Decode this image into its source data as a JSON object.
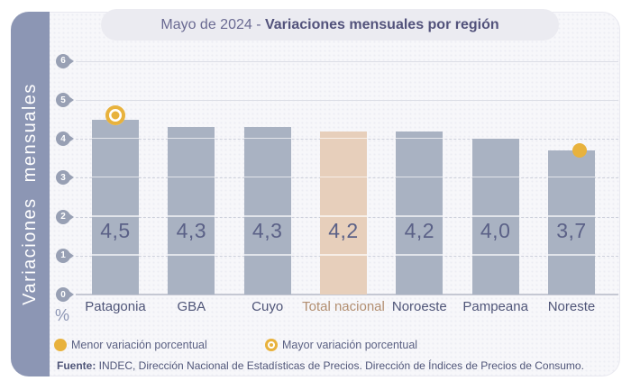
{
  "header": {
    "title_prefix": "Mayo de 2024 - ",
    "title_main": "Variaciones mensuales por región"
  },
  "chart_data": {
    "type": "bar",
    "title": "Mayo de 2024 - Variaciones mensuales por región",
    "ylabel": "Variaciones mensuales",
    "unit": "%",
    "ylim": [
      0,
      6
    ],
    "yticks": [
      0,
      1,
      2,
      3,
      4,
      5,
      6
    ],
    "grid": "horizontal",
    "categories": [
      "Patagonia",
      "GBA",
      "Cuyo",
      "Total nacional",
      "Noroeste",
      "Pampeana",
      "Noreste"
    ],
    "values": [
      4.5,
      4.3,
      4.3,
      4.2,
      4.2,
      4.0,
      3.7
    ],
    "value_labels": [
      "4,5",
      "4,3",
      "4,3",
      "4,2",
      "4,2",
      "4,0",
      "3,7"
    ],
    "highlight_category": "Total nacional",
    "markers": [
      {
        "category": "Patagonia",
        "value": 4.5,
        "type": "max",
        "meaning": "Mayor variación porcentual"
      },
      {
        "category": "Noreste",
        "value": 3.7,
        "type": "min",
        "meaning": "Menor variación porcentual"
      }
    ]
  },
  "legend": [
    {
      "type": "min",
      "label": "Menor variación porcentual"
    },
    {
      "type": "max",
      "label": "Mayor variación porcentual"
    }
  ],
  "source": {
    "bold": "Fuente:",
    "text": " INDEC, Dirección Nacional de Estadísticas de Precios. Dirección de Índices de Precios de Consumo."
  },
  "colors": {
    "bar": "#a9b2c2",
    "bar_highlight": "#e7cfbb",
    "gold": "#e8b23d",
    "sidebar": "#8c96b4",
    "value_label": "#5b6187",
    "x_label": "#4f5578",
    "x_label_highlight": "#b28e70",
    "title_text": "#52527b",
    "card_bg": "#f7f7fa"
  }
}
